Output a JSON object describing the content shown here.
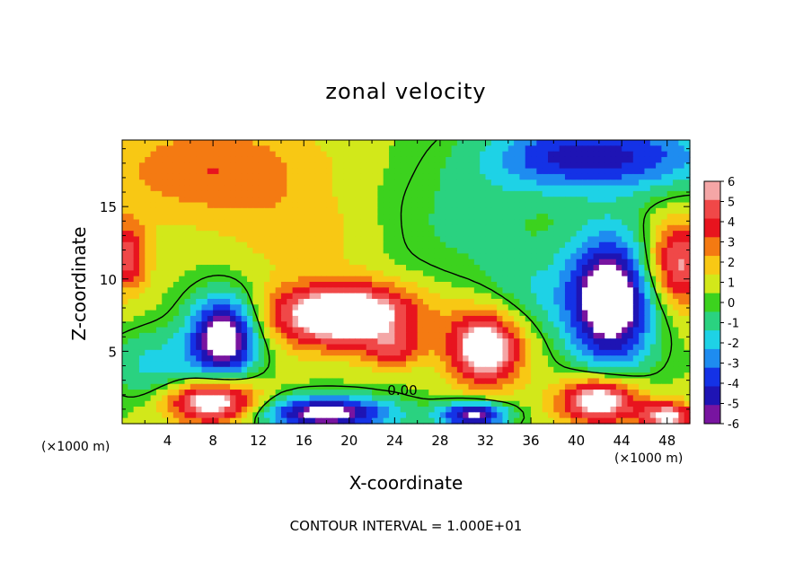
{
  "chart_data": {
    "type": "heatmap",
    "title": "zonal velocity",
    "xlabel": "X-coordinate",
    "ylabel": "Z-coordinate",
    "x_unit_left": "(×1000 m)",
    "x_unit_right": "(×1000 m)",
    "footnote": "CONTOUR INTERVAL = 1.000E+01",
    "xlim": [
      0,
      50
    ],
    "ylim": [
      0,
      19.6
    ],
    "x_ticks": [
      {
        "v": 4,
        "label": "4"
      },
      {
        "v": 8,
        "label": "8"
      },
      {
        "v": 12,
        "label": "12"
      },
      {
        "v": 16,
        "label": "16"
      },
      {
        "v": 20,
        "label": "20"
      },
      {
        "v": 24,
        "label": "24"
      },
      {
        "v": 28,
        "label": "28"
      },
      {
        "v": 32,
        "label": "32"
      },
      {
        "v": 36,
        "label": "36"
      },
      {
        "v": 40,
        "label": "40"
      },
      {
        "v": 44,
        "label": "44"
      },
      {
        "v": 48,
        "label": "48"
      }
    ],
    "y_ticks": [
      {
        "v": 5,
        "label": "5"
      },
      {
        "v": 10,
        "label": "10"
      },
      {
        "v": 15,
        "label": "15"
      }
    ],
    "contour_label": "0.00",
    "colorbar": {
      "range": [
        -6,
        6
      ],
      "labels": [
        "6",
        "5",
        "4",
        "3",
        "2",
        "1",
        "0",
        "-1",
        "-2",
        "-3",
        "-4",
        "-5",
        "-6"
      ],
      "colors": [
        "#f4a6a6",
        "#f04848",
        "#e8141e",
        "#f47a12",
        "#f8c814",
        "#d2e81a",
        "#3cd21e",
        "#2ad280",
        "#1ed2e6",
        "#1e8cf0",
        "#1432e6",
        "#1e14b4",
        "#7814a0"
      ]
    },
    "field": {
      "background": 0.6,
      "blobs": [
        {
          "x": 8,
          "y": 17.5,
          "rx": 10,
          "ry": 3.5,
          "a": 2.9
        },
        {
          "x": 16,
          "y": 13,
          "rx": 6,
          "ry": 2.5,
          "a": 1.4
        },
        {
          "x": 44,
          "y": 18.5,
          "rx": 9,
          "ry": 2.5,
          "a": -4.8
        },
        {
          "x": 37,
          "y": 18.5,
          "rx": 6,
          "ry": 2.5,
          "a": -2.0
        },
        {
          "x": 30,
          "y": 14,
          "rx": 8,
          "ry": 5,
          "a": -1.3
        },
        {
          "x": 0.5,
          "y": 11.5,
          "rx": 1.8,
          "ry": 2.5,
          "a": 4.5
        },
        {
          "x": 49,
          "y": 11,
          "rx": 3,
          "ry": 3,
          "a": 5.5
        },
        {
          "x": 19.5,
          "y": 7.5,
          "rx": 6.5,
          "ry": 2.2,
          "a": 8.5
        },
        {
          "x": 24,
          "y": 5,
          "rx": 2.5,
          "ry": 1.2,
          "a": 3.0
        },
        {
          "x": 9,
          "y": 6,
          "rx": 3,
          "ry": 2.8,
          "a": -8.5
        },
        {
          "x": 3,
          "y": 4,
          "rx": 4,
          "ry": 2.5,
          "a": -2.5
        },
        {
          "x": 32,
          "y": 5.2,
          "rx": 3.2,
          "ry": 2.5,
          "a": 7.5
        },
        {
          "x": 43,
          "y": 8.5,
          "rx": 3.8,
          "ry": 4.5,
          "a": -9.0
        },
        {
          "x": 8,
          "y": 1.5,
          "rx": 4,
          "ry": 1.5,
          "a": 7.5
        },
        {
          "x": 18,
          "y": 0.7,
          "rx": 6,
          "ry": 1.2,
          "a": -7.5
        },
        {
          "x": 31,
          "y": 0.6,
          "rx": 3,
          "ry": 0.9,
          "a": -7.0
        },
        {
          "x": 42,
          "y": 1.6,
          "rx": 3.5,
          "ry": 1.6,
          "a": 7.5
        },
        {
          "x": 48,
          "y": 0.5,
          "rx": 2.5,
          "ry": 1.0,
          "a": 6.0
        },
        {
          "x": 36,
          "y": 9,
          "rx": 4,
          "ry": 3,
          "a": -1.6
        }
      ]
    }
  }
}
